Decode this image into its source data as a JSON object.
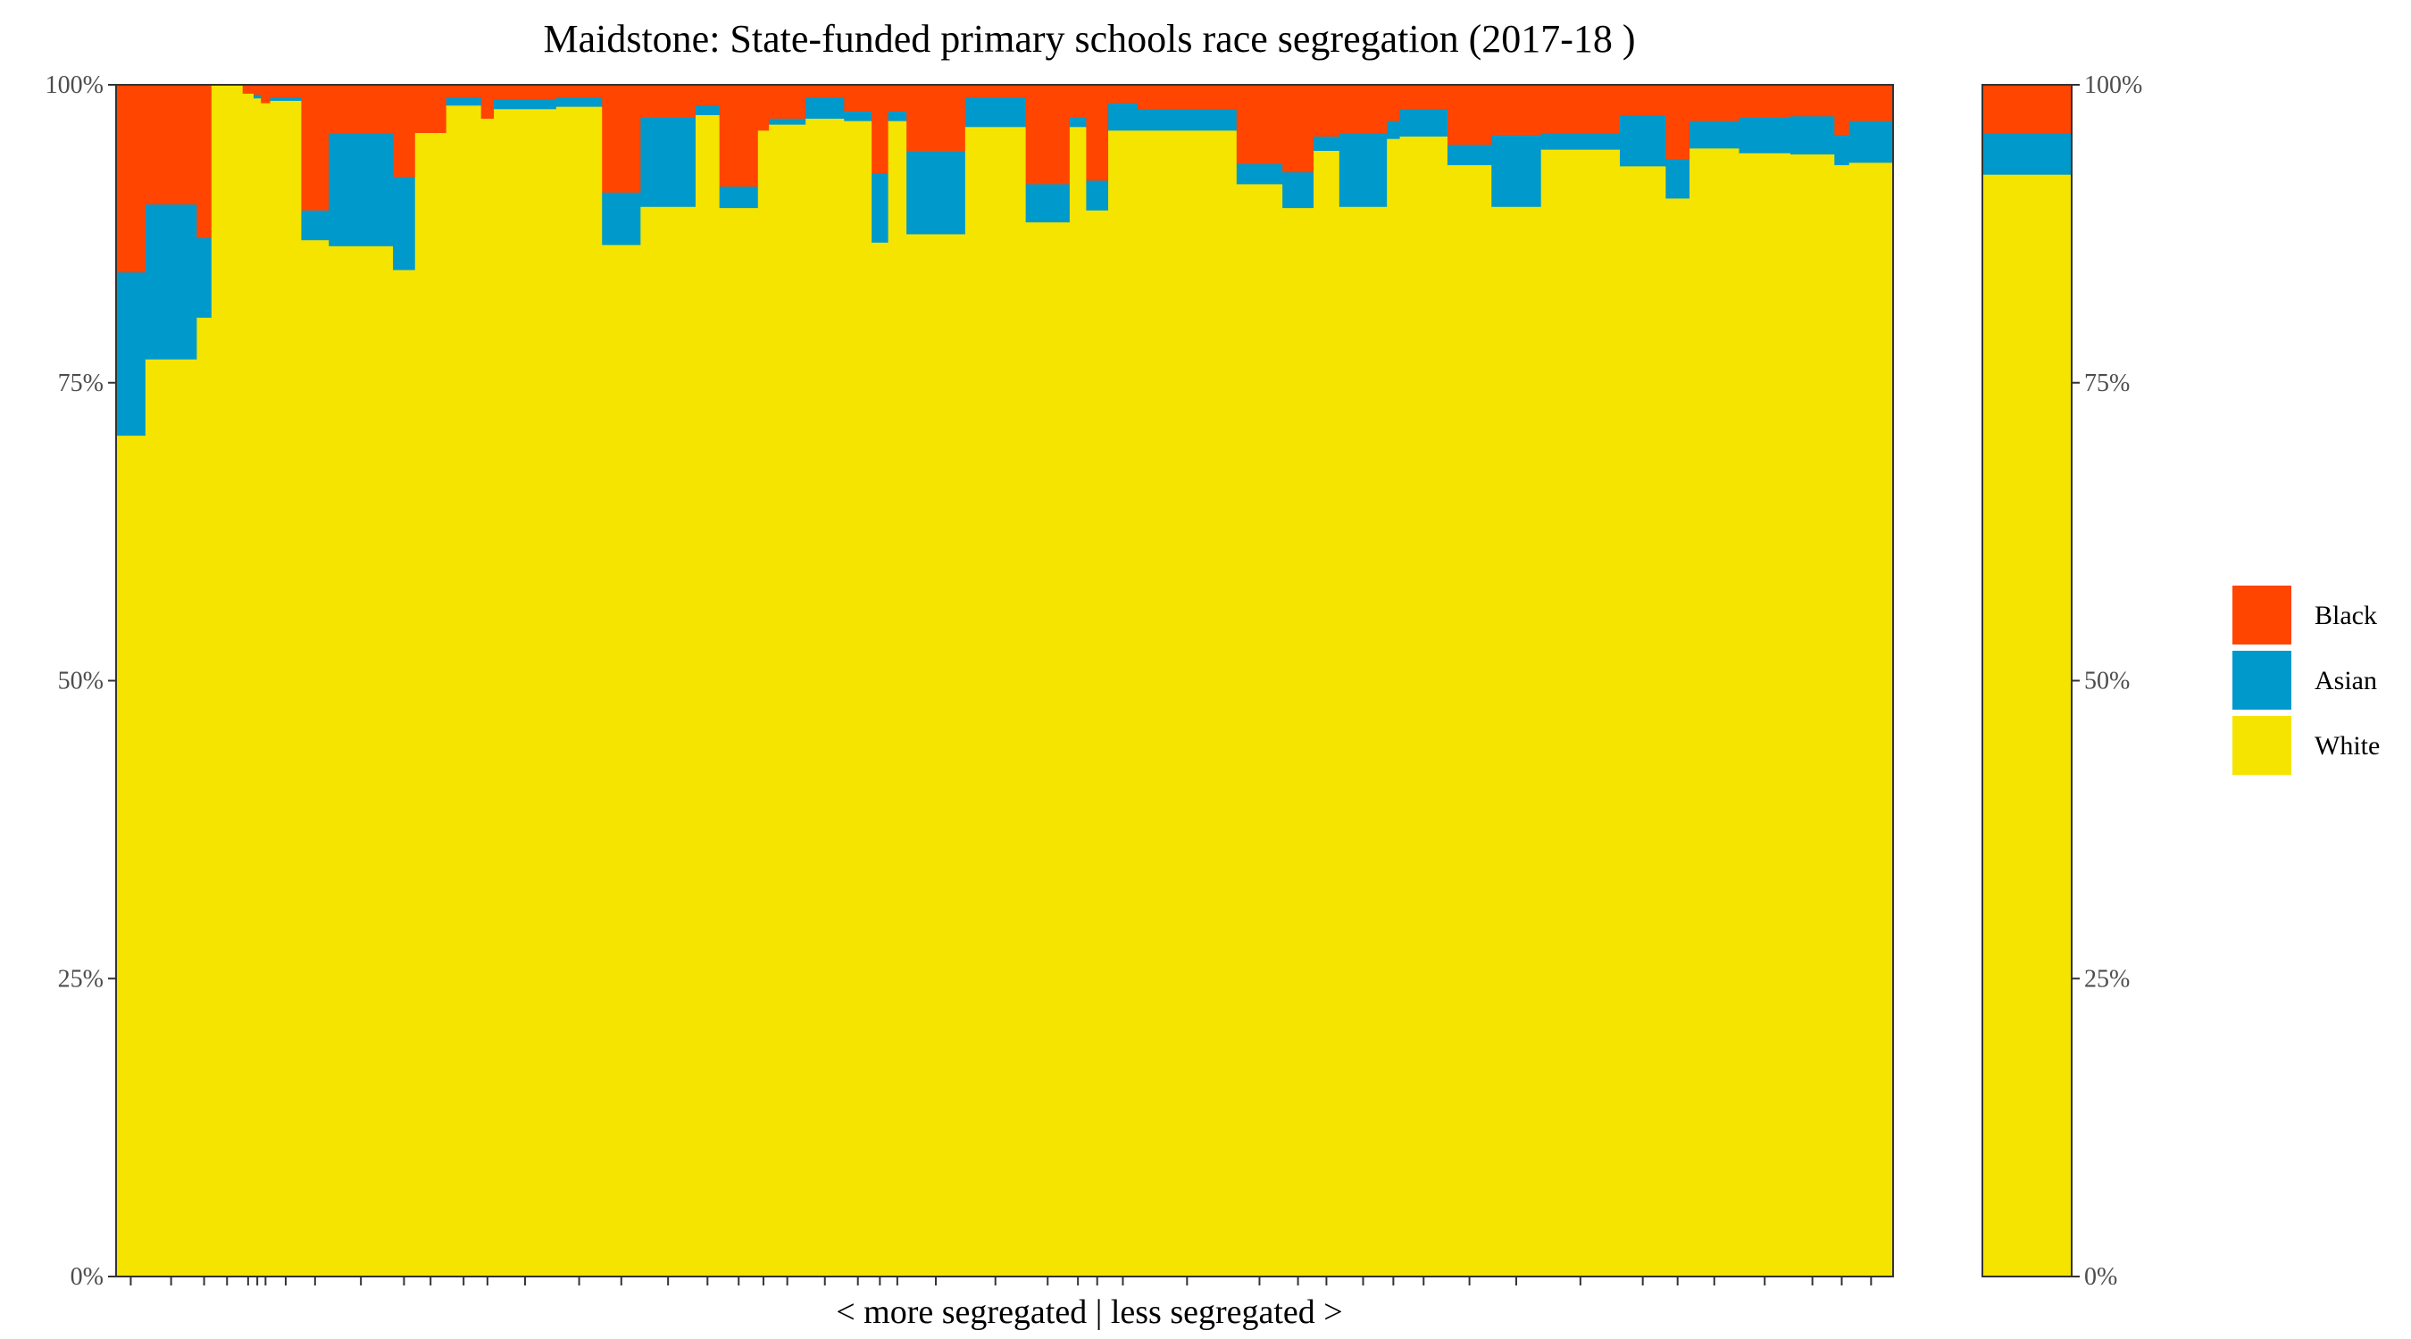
{
  "chart_data": {
    "type": "bar",
    "title": "Maidstone: State-funded primary schools race segregation (2017-18 )",
    "xlabel": "< more segregated | less segregated >",
    "ylabel": "",
    "ylim": [
      0,
      1
    ],
    "y_ticks": [
      "0%",
      "25%",
      "50%",
      "75%",
      "100%"
    ],
    "stack_order": [
      "White",
      "Asian",
      "Black"
    ],
    "legend": [
      {
        "name": "Black",
        "color": "#FF4500"
      },
      {
        "name": "Asian",
        "color": "#0099CC"
      },
      {
        "name": "White",
        "color": "#F5E400"
      }
    ],
    "schools": [
      {
        "width": 16,
        "white": 0.706,
        "asian": 0.137,
        "black": 0.157
      },
      {
        "width": 28,
        "white": 0.77,
        "asian": 0.13,
        "black": 0.1
      },
      {
        "width": 8,
        "white": 0.805,
        "asian": 0.067,
        "black": 0.128
      },
      {
        "width": 17,
        "white": 1.0,
        "asian": 0.0,
        "black": 0.0
      },
      {
        "width": 6,
        "white": 0.993,
        "asian": 0.0,
        "black": 0.007
      },
      {
        "width": 4,
        "white": 0.989,
        "asian": 0.003,
        "black": 0.008
      },
      {
        "width": 5,
        "white": 0.985,
        "asian": 0.0,
        "black": 0.015
      },
      {
        "width": 17,
        "white": 0.987,
        "asian": 0.003,
        "black": 0.01
      },
      {
        "width": 15,
        "white": 0.87,
        "asian": 0.025,
        "black": 0.105
      },
      {
        "width": 35,
        "white": 0.865,
        "asian": 0.095,
        "black": 0.04
      },
      {
        "width": 12,
        "white": 0.845,
        "asian": 0.078,
        "black": 0.077
      },
      {
        "width": 17,
        "white": 0.96,
        "asian": 0.0,
        "black": 0.04
      },
      {
        "width": 19,
        "white": 0.983,
        "asian": 0.007,
        "black": 0.01
      },
      {
        "width": 7,
        "white": 0.972,
        "asian": 0.0,
        "black": 0.028
      },
      {
        "width": 34,
        "white": 0.98,
        "asian": 0.008,
        "black": 0.012
      },
      {
        "width": 25,
        "white": 0.982,
        "asian": 0.008,
        "black": 0.01
      },
      {
        "width": 21,
        "white": 0.866,
        "asian": 0.044,
        "black": 0.09
      },
      {
        "width": 30,
        "white": 0.898,
        "asian": 0.075,
        "black": 0.027
      },
      {
        "width": 13,
        "white": 0.975,
        "asian": 0.008,
        "black": 0.017
      },
      {
        "width": 21,
        "white": 0.897,
        "asian": 0.018,
        "black": 0.085
      },
      {
        "width": 6,
        "white": 0.962,
        "asian": 0.0,
        "black": 0.038
      },
      {
        "width": 20,
        "white": 0.967,
        "asian": 0.005,
        "black": 0.028
      },
      {
        "width": 21,
        "white": 0.972,
        "asian": 0.018,
        "black": 0.01
      },
      {
        "width": 15,
        "white": 0.97,
        "asian": 0.008,
        "black": 0.022
      },
      {
        "width": 9,
        "white": 0.868,
        "asian": 0.058,
        "black": 0.074
      },
      {
        "width": 10,
        "white": 0.97,
        "asian": 0.008,
        "black": 0.022
      },
      {
        "width": 32,
        "white": 0.875,
        "asian": 0.07,
        "black": 0.055
      },
      {
        "width": 33,
        "white": 0.965,
        "asian": 0.025,
        "black": 0.01
      },
      {
        "width": 24,
        "white": 0.885,
        "asian": 0.032,
        "black": 0.083
      },
      {
        "width": 9,
        "white": 0.965,
        "asian": 0.008,
        "black": 0.027
      },
      {
        "width": 12,
        "white": 0.895,
        "asian": 0.025,
        "black": 0.08
      },
      {
        "width": 16,
        "white": 0.962,
        "asian": 0.023,
        "black": 0.015
      },
      {
        "width": 54,
        "white": 0.962,
        "asian": 0.018,
        "black": 0.02
      },
      {
        "width": 25,
        "white": 0.917,
        "asian": 0.017,
        "black": 0.066
      },
      {
        "width": 17,
        "white": 0.897,
        "asian": 0.03,
        "black": 0.073
      },
      {
        "width": 14,
        "white": 0.945,
        "asian": 0.012,
        "black": 0.043
      },
      {
        "width": 26,
        "white": 0.898,
        "asian": 0.062,
        "black": 0.04
      },
      {
        "width": 7,
        "white": 0.955,
        "asian": 0.015,
        "black": 0.03
      },
      {
        "width": 26,
        "white": 0.957,
        "asian": 0.023,
        "black": 0.02
      },
      {
        "width": 24,
        "white": 0.933,
        "asian": 0.017,
        "black": 0.05
      },
      {
        "width": 27,
        "white": 0.898,
        "asian": 0.06,
        "black": 0.042
      },
      {
        "width": 43,
        "white": 0.946,
        "asian": 0.014,
        "black": 0.04
      },
      {
        "width": 25,
        "white": 0.932,
        "asian": 0.043,
        "black": 0.025
      },
      {
        "width": 13,
        "white": 0.905,
        "asian": 0.033,
        "black": 0.062
      },
      {
        "width": 27,
        "white": 0.947,
        "asian": 0.023,
        "black": 0.03
      },
      {
        "width": 28,
        "white": 0.943,
        "asian": 0.03,
        "black": 0.027
      },
      {
        "width": 24,
        "white": 0.942,
        "asian": 0.032,
        "black": 0.026
      },
      {
        "width": 8,
        "white": 0.933,
        "asian": 0.025,
        "black": 0.042
      },
      {
        "width": 24,
        "white": 0.935,
        "asian": 0.035,
        "black": 0.03
      }
    ],
    "summary": {
      "white": 0.925,
      "asian": 0.035,
      "black": 0.04
    }
  }
}
